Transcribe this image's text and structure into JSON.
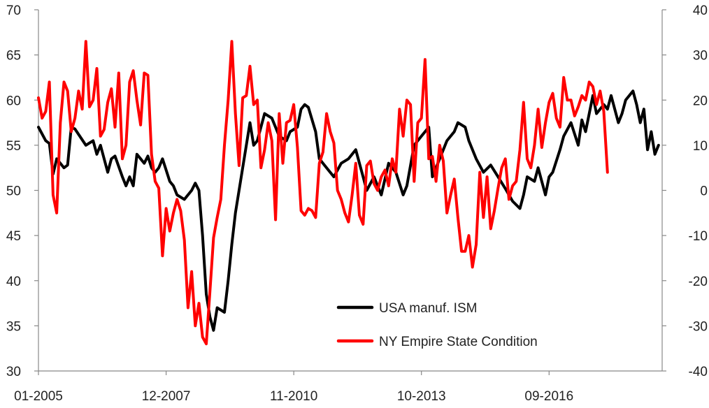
{
  "chart_data": {
    "type": "line",
    "title": "",
    "xlabel": "",
    "ylabel_left": "",
    "ylabel_right": "",
    "grid": false,
    "legend_position": "lower-right",
    "x_range": [
      "2005-01",
      "2019-04"
    ],
    "x_tick_labels": [
      "01-2005",
      "12-2007",
      "11-2010",
      "10-2013",
      "09-2016"
    ],
    "y_left": {
      "min": 30,
      "max": 70,
      "ticks": [
        "30",
        "35",
        "40",
        "45",
        "50",
        "55",
        "60",
        "65",
        "70"
      ]
    },
    "y_right": {
      "min": -40,
      "max": 40,
      "ticks": [
        "-40",
        "-30",
        "-20",
        "-10",
        "0",
        "10",
        "20",
        "30",
        "40"
      ]
    },
    "series": [
      {
        "name": "USA manuf. ISM",
        "color": "#000000",
        "axis": "left",
        "points": [
          [
            "2005-01",
            57.0
          ],
          [
            "2005-03",
            55.5
          ],
          [
            "2005-04",
            55.2
          ],
          [
            "2005-05",
            51.8
          ],
          [
            "2005-06",
            53.5
          ],
          [
            "2005-08",
            52.5
          ],
          [
            "2005-09",
            52.8
          ],
          [
            "2005-10",
            57.0
          ],
          [
            "2005-11",
            56.8
          ],
          [
            "2006-02",
            55.0
          ],
          [
            "2006-04",
            55.5
          ],
          [
            "2006-05",
            54.0
          ],
          [
            "2006-06",
            55.0
          ],
          [
            "2006-08",
            52.0
          ],
          [
            "2006-09",
            53.5
          ],
          [
            "2006-10",
            53.8
          ],
          [
            "2006-12",
            51.5
          ],
          [
            "2007-01",
            50.5
          ],
          [
            "2007-02",
            51.5
          ],
          [
            "2007-03",
            50.5
          ],
          [
            "2007-04",
            54.0
          ],
          [
            "2007-05",
            53.5
          ],
          [
            "2007-06",
            53.0
          ],
          [
            "2007-07",
            53.8
          ],
          [
            "2007-08",
            52.5
          ],
          [
            "2007-09",
            52.0
          ],
          [
            "2007-10",
            52.5
          ],
          [
            "2007-11",
            53.5
          ],
          [
            "2008-01",
            51.0
          ],
          [
            "2008-02",
            50.5
          ],
          [
            "2008-03",
            49.5
          ],
          [
            "2008-05",
            49.0
          ],
          [
            "2008-07",
            50.0
          ],
          [
            "2008-08",
            50.8
          ],
          [
            "2008-09",
            50.0
          ],
          [
            "2008-10",
            45.0
          ],
          [
            "2008-11",
            38.5
          ],
          [
            "2008-12",
            36.0
          ],
          [
            "2009-01",
            34.5
          ],
          [
            "2009-02",
            37.0
          ],
          [
            "2009-04",
            36.5
          ],
          [
            "2009-05",
            40.0
          ],
          [
            "2009-06",
            44.0
          ],
          [
            "2009-07",
            47.5
          ],
          [
            "2009-09",
            52.5
          ],
          [
            "2009-11",
            57.5
          ],
          [
            "2009-12",
            55.0
          ],
          [
            "2010-01",
            55.5
          ],
          [
            "2010-03",
            58.5
          ],
          [
            "2010-05",
            58.0
          ],
          [
            "2010-07",
            56.0
          ],
          [
            "2010-09",
            55.5
          ],
          [
            "2010-10",
            56.5
          ],
          [
            "2010-12",
            57.0
          ],
          [
            "2011-01",
            59.0
          ],
          [
            "2011-02",
            59.5
          ],
          [
            "2011-03",
            59.2
          ],
          [
            "2011-05",
            56.5
          ],
          [
            "2011-06",
            53.5
          ],
          [
            "2011-08",
            52.5
          ],
          [
            "2011-10",
            51.5
          ],
          [
            "2011-12",
            53.0
          ],
          [
            "2012-02",
            53.5
          ],
          [
            "2012-04",
            54.5
          ],
          [
            "2012-06",
            51.5
          ],
          [
            "2012-07",
            50.0
          ],
          [
            "2012-09",
            51.5
          ],
          [
            "2012-11",
            49.5
          ],
          [
            "2013-01",
            53.0
          ],
          [
            "2013-03",
            52.0
          ],
          [
            "2013-05",
            49.5
          ],
          [
            "2013-06",
            50.5
          ],
          [
            "2013-08",
            55.0
          ],
          [
            "2013-10",
            56.0
          ],
          [
            "2013-12",
            57.0
          ],
          [
            "2014-01",
            51.5
          ],
          [
            "2014-03",
            53.5
          ],
          [
            "2014-05",
            55.5
          ],
          [
            "2014-07",
            56.5
          ],
          [
            "2014-08",
            57.5
          ],
          [
            "2014-10",
            57.0
          ],
          [
            "2014-11",
            55.5
          ],
          [
            "2015-01",
            53.5
          ],
          [
            "2015-03",
            52.0
          ],
          [
            "2015-05",
            52.8
          ],
          [
            "2015-07",
            51.5
          ],
          [
            "2015-09",
            50.2
          ],
          [
            "2015-11",
            48.8
          ],
          [
            "2016-01",
            48.0
          ],
          [
            "2016-02",
            49.5
          ],
          [
            "2016-03",
            51.5
          ],
          [
            "2016-05",
            51.0
          ],
          [
            "2016-06",
            52.5
          ],
          [
            "2016-08",
            49.5
          ],
          [
            "2016-09",
            51.5
          ],
          [
            "2016-10",
            52.0
          ],
          [
            "2016-12",
            54.5
          ],
          [
            "2017-01",
            56.0
          ],
          [
            "2017-03",
            57.5
          ],
          [
            "2017-05",
            55.0
          ],
          [
            "2017-06",
            57.8
          ],
          [
            "2017-07",
            56.5
          ],
          [
            "2017-09",
            60.5
          ],
          [
            "2017-10",
            58.5
          ],
          [
            "2017-12",
            59.5
          ],
          [
            "2018-01",
            59.0
          ],
          [
            "2018-02",
            60.5
          ],
          [
            "2018-04",
            57.5
          ],
          [
            "2018-05",
            58.5
          ],
          [
            "2018-06",
            60.0
          ],
          [
            "2018-08",
            61.0
          ],
          [
            "2018-09",
            59.5
          ],
          [
            "2018-10",
            57.5
          ],
          [
            "2018-11",
            59.0
          ],
          [
            "2018-12",
            54.5
          ],
          [
            "2019-01",
            56.5
          ],
          [
            "2019-02",
            54.0
          ],
          [
            "2019-03",
            55.0
          ]
        ]
      },
      {
        "name": "NY Empire State Condition",
        "color": "#ff0000",
        "axis": "right",
        "points": [
          [
            "2005-01",
            20.5
          ],
          [
            "2005-02",
            16.0
          ],
          [
            "2005-03",
            17.5
          ],
          [
            "2005-04",
            24.0
          ],
          [
            "2005-05",
            -1.0
          ],
          [
            "2005-06",
            -5.0
          ],
          [
            "2005-07",
            15.0
          ],
          [
            "2005-08",
            24.0
          ],
          [
            "2005-09",
            22.0
          ],
          [
            "2005-10",
            13.0
          ],
          [
            "2005-11",
            16.0
          ],
          [
            "2005-12",
            22.0
          ],
          [
            "2006-01",
            18.0
          ],
          [
            "2006-02",
            33.0
          ],
          [
            "2006-03",
            18.5
          ],
          [
            "2006-04",
            20.0
          ],
          [
            "2006-05",
            27.0
          ],
          [
            "2006-06",
            12.0
          ],
          [
            "2006-07",
            13.5
          ],
          [
            "2006-08",
            19.5
          ],
          [
            "2006-09",
            22.5
          ],
          [
            "2006-10",
            14.0
          ],
          [
            "2006-11",
            26.0
          ],
          [
            "2006-12",
            7.0
          ],
          [
            "2007-01",
            10.0
          ],
          [
            "2007-02",
            24.0
          ],
          [
            "2007-03",
            26.5
          ],
          [
            "2007-04",
            20.0
          ],
          [
            "2007-05",
            14.5
          ],
          [
            "2007-06",
            26.0
          ],
          [
            "2007-07",
            25.5
          ],
          [
            "2007-08",
            8.0
          ],
          [
            "2007-09",
            2.0
          ],
          [
            "2007-10",
            0.5
          ],
          [
            "2007-11",
            -14.5
          ],
          [
            "2007-12",
            -4.0
          ],
          [
            "2008-01",
            -9.0
          ],
          [
            "2008-02",
            -5.0
          ],
          [
            "2008-03",
            -2.0
          ],
          [
            "2008-04",
            -4.5
          ],
          [
            "2008-05",
            -11.0
          ],
          [
            "2008-06",
            -26.0
          ],
          [
            "2008-07",
            -18.0
          ],
          [
            "2008-08",
            -30.0
          ],
          [
            "2008-09",
            -25.0
          ],
          [
            "2008-10",
            -32.5
          ],
          [
            "2008-11",
            -34.0
          ],
          [
            "2008-12",
            -22.5
          ],
          [
            "2009-01",
            -10.5
          ],
          [
            "2009-02",
            -6.0
          ],
          [
            "2009-03",
            -2.0
          ],
          [
            "2009-04",
            10.0
          ],
          [
            "2009-05",
            20.0
          ],
          [
            "2009-06",
            33.0
          ],
          [
            "2009-07",
            17.0
          ],
          [
            "2009-08",
            5.5
          ],
          [
            "2009-09",
            20.5
          ],
          [
            "2009-10",
            21.0
          ],
          [
            "2009-11",
            27.5
          ],
          [
            "2009-12",
            19.0
          ],
          [
            "2010-01",
            20.0
          ],
          [
            "2010-02",
            5.0
          ],
          [
            "2010-03",
            9.0
          ],
          [
            "2010-04",
            15.0
          ],
          [
            "2010-05",
            11.0
          ],
          [
            "2010-06",
            -6.5
          ],
          [
            "2010-07",
            17.0
          ],
          [
            "2010-08",
            6.0
          ],
          [
            "2010-09",
            15.0
          ],
          [
            "2010-10",
            15.5
          ],
          [
            "2010-11",
            19.0
          ],
          [
            "2010-12",
            9.5
          ],
          [
            "2011-01",
            -4.5
          ],
          [
            "2011-02",
            -5.5
          ],
          [
            "2011-03",
            -4.0
          ],
          [
            "2011-04",
            -4.5
          ],
          [
            "2011-05",
            -6.0
          ],
          [
            "2011-06",
            6.0
          ],
          [
            "2011-07",
            8.5
          ],
          [
            "2011-08",
            17.0
          ],
          [
            "2011-09",
            13.0
          ],
          [
            "2011-10",
            10.5
          ],
          [
            "2011-11",
            0.0
          ],
          [
            "2011-12",
            -2.0
          ],
          [
            "2012-01",
            -5.0
          ],
          [
            "2012-02",
            -7.0
          ],
          [
            "2012-03",
            -1.0
          ],
          [
            "2012-04",
            6.0
          ],
          [
            "2012-05",
            -5.5
          ],
          [
            "2012-06",
            -7.5
          ],
          [
            "2012-07",
            5.5
          ],
          [
            "2012-08",
            6.5
          ],
          [
            "2012-09",
            1.5
          ],
          [
            "2012-10",
            0.0
          ],
          [
            "2012-11",
            3.0
          ],
          [
            "2012-12",
            4.5
          ],
          [
            "2013-01",
            1.0
          ],
          [
            "2013-02",
            7.0
          ],
          [
            "2013-03",
            4.0
          ],
          [
            "2013-04",
            18.0
          ],
          [
            "2013-05",
            12.0
          ],
          [
            "2013-06",
            20.0
          ],
          [
            "2013-07",
            19.0
          ],
          [
            "2013-08",
            2.0
          ],
          [
            "2013-09",
            15.0
          ],
          [
            "2013-10",
            16.0
          ],
          [
            "2013-11",
            29.0
          ],
          [
            "2013-12",
            7.0
          ],
          [
            "2014-01",
            7.5
          ],
          [
            "2014-02",
            2.0
          ],
          [
            "2014-03",
            10.0
          ],
          [
            "2014-04",
            6.5
          ],
          [
            "2014-05",
            -5.0
          ],
          [
            "2014-06",
            -1.0
          ],
          [
            "2014-07",
            2.5
          ],
          [
            "2014-08",
            -6.0
          ],
          [
            "2014-09",
            -13.5
          ],
          [
            "2014-10",
            -13.5
          ],
          [
            "2014-11",
            -10.0
          ],
          [
            "2014-12",
            -17.0
          ],
          [
            "2015-01",
            -12.0
          ],
          [
            "2015-02",
            4.0
          ],
          [
            "2015-03",
            -6.0
          ],
          [
            "2015-04",
            3.0
          ],
          [
            "2015-05",
            -8.5
          ],
          [
            "2015-06",
            -4.5
          ],
          [
            "2015-07",
            0.5
          ],
          [
            "2015-08",
            5.0
          ],
          [
            "2015-09",
            7.0
          ],
          [
            "2015-10",
            -2.0
          ],
          [
            "2015-11",
            1.0
          ],
          [
            "2015-12",
            2.0
          ],
          [
            "2016-01",
            9.0
          ],
          [
            "2016-02",
            19.5
          ],
          [
            "2016-03",
            7.0
          ],
          [
            "2016-04",
            5.0
          ],
          [
            "2016-05",
            10.0
          ],
          [
            "2016-06",
            18.0
          ],
          [
            "2016-07",
            9.5
          ],
          [
            "2016-08",
            15.0
          ],
          [
            "2016-09",
            19.5
          ],
          [
            "2016-10",
            21.5
          ],
          [
            "2016-11",
            16.0
          ],
          [
            "2016-12",
            14.0
          ],
          [
            "2017-01",
            25.0
          ],
          [
            "2017-02",
            20.0
          ],
          [
            "2017-03",
            20.0
          ],
          [
            "2017-04",
            16.5
          ],
          [
            "2017-05",
            18.5
          ],
          [
            "2017-06",
            21.0
          ],
          [
            "2017-07",
            20.0
          ],
          [
            "2017-08",
            24.0
          ],
          [
            "2017-09",
            23.0
          ],
          [
            "2017-10",
            19.0
          ],
          [
            "2017-11",
            22.0
          ],
          [
            "2017-12",
            17.5
          ],
          [
            "2018-01",
            4.0
          ]
        ]
      }
    ]
  }
}
